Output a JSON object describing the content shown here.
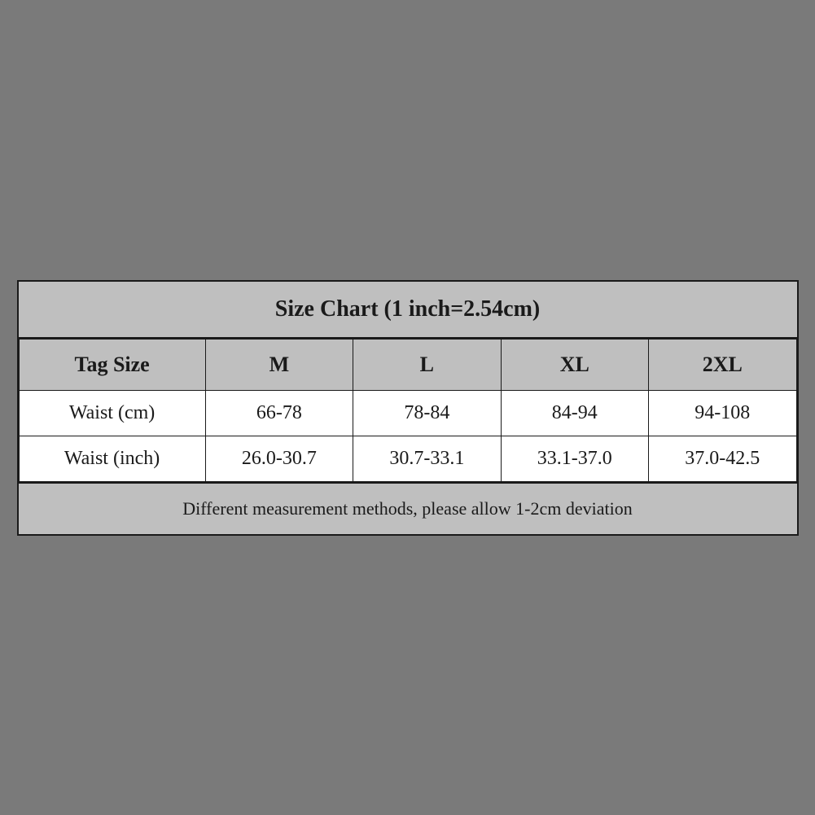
{
  "chart": {
    "title": "Size Chart (1 inch=2.54cm)",
    "title_fontsize": 28,
    "title_fontweight": "bold",
    "header_bg": "#bfbfbf",
    "data_bg": "#ffffff",
    "border_color": "#1a1a1a",
    "text_color": "#1a1a1a",
    "page_bg": "#7a7a7a",
    "columns": {
      "label": "Tag Size",
      "sizes": [
        "M",
        "L",
        "XL",
        "2XL"
      ]
    },
    "rows": [
      {
        "label": "Waist (cm)",
        "values": [
          "66-78",
          "78-84",
          "84-94",
          "94-108"
        ]
      },
      {
        "label": "Waist (inch)",
        "values": [
          "26.0-30.7",
          "30.7-33.1",
          "33.1-37.0",
          "37.0-42.5"
        ]
      }
    ],
    "footer": "Different measurement methods, please allow 1-2cm deviation",
    "header_fontsize": 26,
    "data_fontsize": 24,
    "footer_fontsize": 22,
    "col_label_width_pct": 24,
    "col_size_width_pct": 19
  }
}
